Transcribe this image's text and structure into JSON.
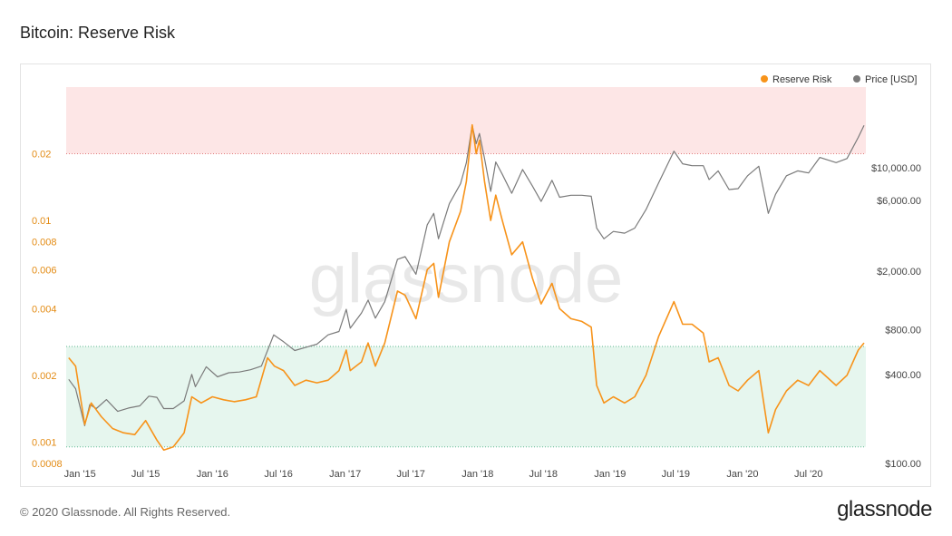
{
  "header": {
    "title": "Bitcoin: Reserve Risk"
  },
  "footer": {
    "copyright": "© 2020 Glassnode. All Rights Reserved.",
    "brand": "glassnode"
  },
  "watermark": "glassnode",
  "colors": {
    "reserve_risk": "#f7931a",
    "price": "#7a7a7a",
    "high_zone": "#fde6e6",
    "low_zone": "#e6f6ee"
  },
  "chart_data": {
    "type": "line",
    "title": "Bitcoin: Reserve Risk",
    "y_scale": "log",
    "zones": {
      "low": [
        0.00095,
        0.0027
      ],
      "high": [
        0.02,
        0.04
      ]
    },
    "legend_position": "top-right",
    "x_ticks": [
      "Jan '15",
      "Jul '15",
      "Jan '16",
      "Jul '16",
      "Jan '17",
      "Jul '17",
      "Jan '18",
      "Jul '18",
      "Jan '19",
      "Jul '19",
      "Jan '20",
      "Jul '20"
    ],
    "left_axis": {
      "ticks": [
        "0.02",
        "0.01",
        "0.008",
        "0.006",
        "0.004",
        "0.002",
        "0.001",
        "0.0008"
      ],
      "values": [
        0.02,
        0.01,
        0.008,
        0.006,
        0.004,
        0.002,
        0.001,
        0.0008
      ],
      "ylim": [
        0.0008,
        0.04
      ]
    },
    "right_axis": {
      "ticks": [
        "$10,000.00",
        "$6,000.00",
        "$2,000.00",
        "$800.00",
        "$400.00",
        "$100.00"
      ],
      "values": [
        10000,
        6000,
        2000,
        800,
        400,
        100
      ],
      "ylim": [
        100,
        35000
      ]
    },
    "series": [
      {
        "name": "Reserve Risk",
        "axis": "left",
        "points": [
          [
            "2014-12-01",
            0.0024
          ],
          [
            "2014-12-20",
            0.0022
          ],
          [
            "2015-01-14",
            0.0012
          ],
          [
            "2015-02-01",
            0.0015
          ],
          [
            "2015-03-01",
            0.0013
          ],
          [
            "2015-04-01",
            0.00115
          ],
          [
            "2015-05-01",
            0.0011
          ],
          [
            "2015-06-01",
            0.00108
          ],
          [
            "2015-07-01",
            0.00125
          ],
          [
            "2015-08-01",
            0.00102
          ],
          [
            "2015-08-20",
            0.00092
          ],
          [
            "2015-09-15",
            0.00095
          ],
          [
            "2015-10-15",
            0.0011
          ],
          [
            "2015-11-05",
            0.0016
          ],
          [
            "2015-12-01",
            0.0015
          ],
          [
            "2016-01-01",
            0.0016
          ],
          [
            "2016-02-01",
            0.00155
          ],
          [
            "2016-03-01",
            0.00152
          ],
          [
            "2016-04-01",
            0.00155
          ],
          [
            "2016-05-01",
            0.0016
          ],
          [
            "2016-06-01",
            0.0024
          ],
          [
            "2016-06-20",
            0.0022
          ],
          [
            "2016-07-15",
            0.0021
          ],
          [
            "2016-08-15",
            0.0018
          ],
          [
            "2016-09-15",
            0.0019
          ],
          [
            "2016-10-15",
            0.00185
          ],
          [
            "2016-11-15",
            0.0019
          ],
          [
            "2016-12-15",
            0.0021
          ],
          [
            "2017-01-04",
            0.0026
          ],
          [
            "2017-01-15",
            0.0021
          ],
          [
            "2017-02-15",
            0.0023
          ],
          [
            "2017-03-05",
            0.0028
          ],
          [
            "2017-03-25",
            0.0022
          ],
          [
            "2017-04-20",
            0.0028
          ],
          [
            "2017-05-25",
            0.0048
          ],
          [
            "2017-06-15",
            0.0046
          ],
          [
            "2017-07-15",
            0.0036
          ],
          [
            "2017-08-15",
            0.006
          ],
          [
            "2017-09-02",
            0.0064
          ],
          [
            "2017-09-15",
            0.0045
          ],
          [
            "2017-10-15",
            0.008
          ],
          [
            "2017-11-15",
            0.011
          ],
          [
            "2017-12-01",
            0.015
          ],
          [
            "2017-12-17",
            0.027
          ],
          [
            "2017-12-28",
            0.02
          ],
          [
            "2018-01-06",
            0.023
          ],
          [
            "2018-01-20",
            0.015
          ],
          [
            "2018-02-06",
            0.01
          ],
          [
            "2018-02-20",
            0.013
          ],
          [
            "2018-03-10",
            0.01
          ],
          [
            "2018-04-05",
            0.007
          ],
          [
            "2018-05-05",
            0.008
          ],
          [
            "2018-06-01",
            0.0055
          ],
          [
            "2018-06-25",
            0.0042
          ],
          [
            "2018-07-25",
            0.0052
          ],
          [
            "2018-08-15",
            0.004
          ],
          [
            "2018-09-15",
            0.0036
          ],
          [
            "2018-10-15",
            0.0035
          ],
          [
            "2018-11-10",
            0.0033
          ],
          [
            "2018-11-25",
            0.0018
          ],
          [
            "2018-12-15",
            0.0015
          ],
          [
            "2019-01-10",
            0.0016
          ],
          [
            "2019-02-10",
            0.0015
          ],
          [
            "2019-03-10",
            0.0016
          ],
          [
            "2019-04-10",
            0.002
          ],
          [
            "2019-05-15",
            0.003
          ],
          [
            "2019-06-26",
            0.0043
          ],
          [
            "2019-07-20",
            0.0034
          ],
          [
            "2019-08-15",
            0.0034
          ],
          [
            "2019-09-15",
            0.0031
          ],
          [
            "2019-10-01",
            0.0023
          ],
          [
            "2019-10-26",
            0.0024
          ],
          [
            "2019-11-25",
            0.0018
          ],
          [
            "2019-12-20",
            0.0017
          ],
          [
            "2020-01-15",
            0.0019
          ],
          [
            "2020-02-15",
            0.0021
          ],
          [
            "2020-03-12",
            0.0011
          ],
          [
            "2020-04-01",
            0.0014
          ],
          [
            "2020-05-01",
            0.0017
          ],
          [
            "2020-06-01",
            0.0019
          ],
          [
            "2020-07-01",
            0.0018
          ],
          [
            "2020-08-01",
            0.0021
          ],
          [
            "2020-09-15",
            0.0018
          ],
          [
            "2020-10-15",
            0.002
          ],
          [
            "2020-11-15",
            0.0026
          ],
          [
            "2020-12-01",
            0.0028
          ]
        ]
      },
      {
        "name": "Price [USD]",
        "axis": "right",
        "points": [
          [
            "2014-12-01",
            370
          ],
          [
            "2014-12-20",
            320
          ],
          [
            "2015-01-14",
            180
          ],
          [
            "2015-01-28",
            250
          ],
          [
            "2015-02-15",
            235
          ],
          [
            "2015-03-15",
            270
          ],
          [
            "2015-04-15",
            225
          ],
          [
            "2015-05-15",
            237
          ],
          [
            "2015-06-15",
            245
          ],
          [
            "2015-07-10",
            285
          ],
          [
            "2015-08-01",
            280
          ],
          [
            "2015-08-20",
            235
          ],
          [
            "2015-09-15",
            235
          ],
          [
            "2015-10-15",
            265
          ],
          [
            "2015-11-05",
            400
          ],
          [
            "2015-11-15",
            330
          ],
          [
            "2015-12-15",
            450
          ],
          [
            "2016-01-15",
            385
          ],
          [
            "2016-02-15",
            410
          ],
          [
            "2016-03-15",
            415
          ],
          [
            "2016-04-15",
            430
          ],
          [
            "2016-05-15",
            455
          ],
          [
            "2016-06-18",
            740
          ],
          [
            "2016-07-15",
            665
          ],
          [
            "2016-08-15",
            580
          ],
          [
            "2016-09-15",
            610
          ],
          [
            "2016-10-15",
            640
          ],
          [
            "2016-11-15",
            740
          ],
          [
            "2016-12-15",
            780
          ],
          [
            "2017-01-04",
            1100
          ],
          [
            "2017-01-15",
            820
          ],
          [
            "2017-02-15",
            1040
          ],
          [
            "2017-03-05",
            1270
          ],
          [
            "2017-03-25",
            960
          ],
          [
            "2017-04-20",
            1240
          ],
          [
            "2017-05-25",
            2400
          ],
          [
            "2017-06-15",
            2500
          ],
          [
            "2017-07-15",
            1900
          ],
          [
            "2017-08-15",
            4100
          ],
          [
            "2017-09-02",
            4900
          ],
          [
            "2017-09-15",
            3300
          ],
          [
            "2017-10-15",
            5700
          ],
          [
            "2017-11-15",
            7800
          ],
          [
            "2017-12-01",
            10800
          ],
          [
            "2017-12-17",
            19300
          ],
          [
            "2017-12-28",
            14500
          ],
          [
            "2018-01-06",
            17000
          ],
          [
            "2018-01-20",
            11500
          ],
          [
            "2018-02-06",
            6900
          ],
          [
            "2018-02-20",
            10900
          ],
          [
            "2018-03-10",
            9000
          ],
          [
            "2018-04-05",
            6700
          ],
          [
            "2018-05-05",
            9700
          ],
          [
            "2018-06-01",
            7500
          ],
          [
            "2018-06-25",
            5900
          ],
          [
            "2018-07-25",
            8200
          ],
          [
            "2018-08-15",
            6300
          ],
          [
            "2018-09-15",
            6500
          ],
          [
            "2018-10-15",
            6500
          ],
          [
            "2018-11-10",
            6400
          ],
          [
            "2018-11-25",
            3900
          ],
          [
            "2018-12-15",
            3300
          ],
          [
            "2019-01-10",
            3700
          ],
          [
            "2019-02-10",
            3600
          ],
          [
            "2019-03-10",
            3900
          ],
          [
            "2019-04-10",
            5200
          ],
          [
            "2019-05-15",
            7900
          ],
          [
            "2019-06-26",
            12900
          ],
          [
            "2019-07-20",
            10600
          ],
          [
            "2019-08-15",
            10300
          ],
          [
            "2019-09-15",
            10300
          ],
          [
            "2019-10-01",
            8300
          ],
          [
            "2019-10-26",
            9500
          ],
          [
            "2019-11-25",
            7100
          ],
          [
            "2019-12-20",
            7200
          ],
          [
            "2020-01-15",
            8800
          ],
          [
            "2020-02-15",
            10200
          ],
          [
            "2020-03-12",
            4900
          ],
          [
            "2020-04-01",
            6600
          ],
          [
            "2020-05-01",
            8800
          ],
          [
            "2020-06-01",
            9500
          ],
          [
            "2020-07-01",
            9200
          ],
          [
            "2020-08-01",
            11700
          ],
          [
            "2020-09-15",
            10800
          ],
          [
            "2020-10-15",
            11500
          ],
          [
            "2020-11-15",
            16000
          ],
          [
            "2020-12-01",
            19300
          ]
        ]
      }
    ]
  }
}
